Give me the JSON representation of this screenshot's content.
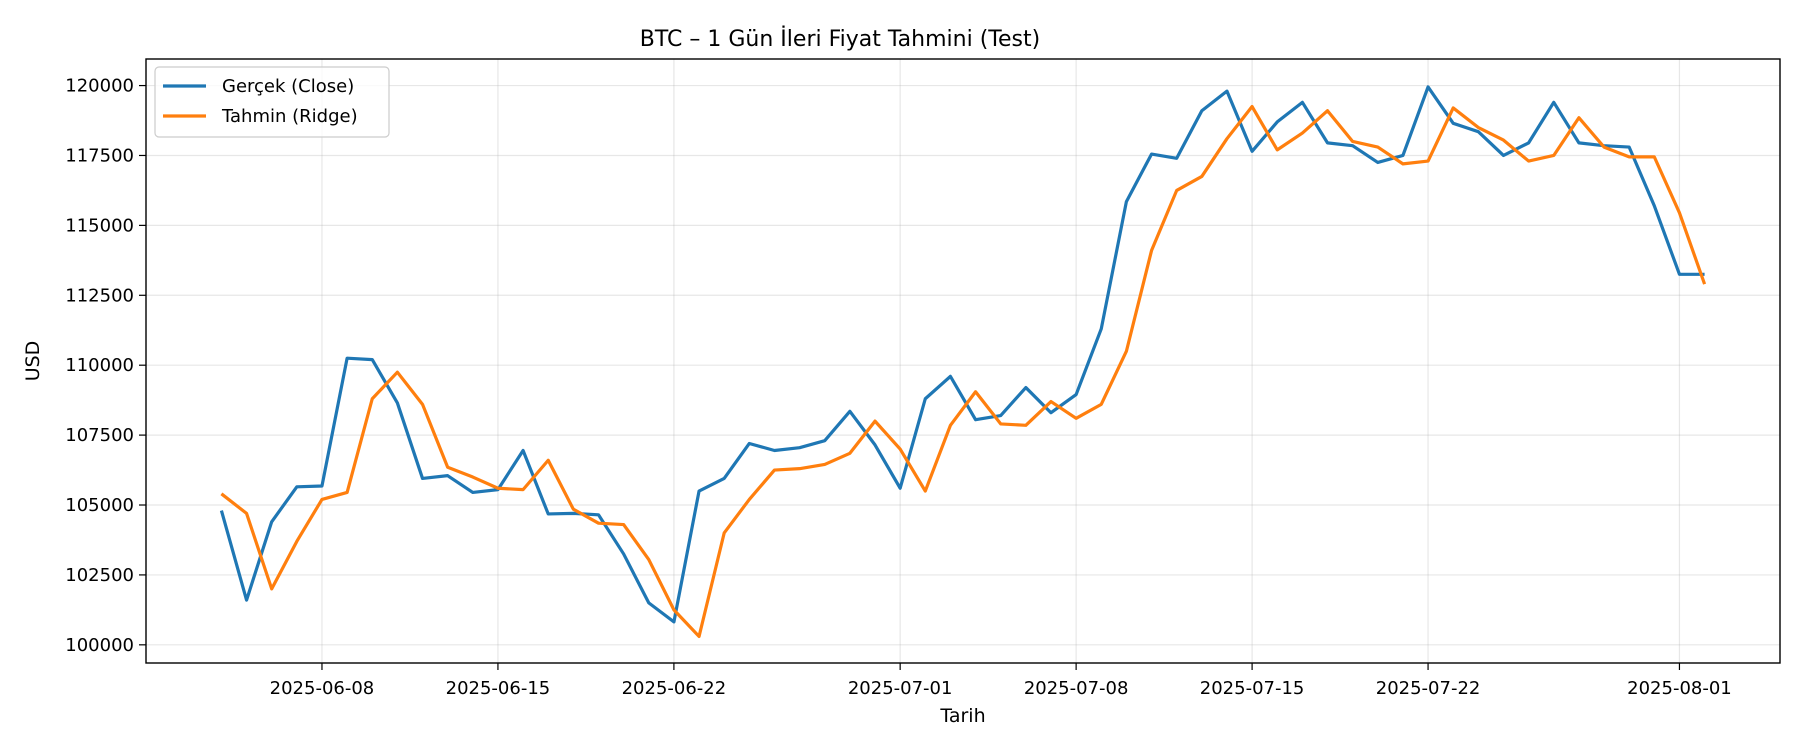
{
  "chart_data": {
    "type": "line",
    "title": "BTC – 1 Gün İleri Fiyat Tahmini (Test)",
    "xlabel": "Tarih",
    "ylabel": "USD",
    "x_start": "2025-06-04",
    "x": [
      "2025-06-04",
      "2025-06-05",
      "2025-06-06",
      "2025-06-07",
      "2025-06-08",
      "2025-06-09",
      "2025-06-10",
      "2025-06-11",
      "2025-06-12",
      "2025-06-13",
      "2025-06-14",
      "2025-06-15",
      "2025-06-16",
      "2025-06-17",
      "2025-06-18",
      "2025-06-19",
      "2025-06-20",
      "2025-06-21",
      "2025-06-22",
      "2025-06-23",
      "2025-06-24",
      "2025-06-25",
      "2025-06-26",
      "2025-06-27",
      "2025-06-28",
      "2025-06-29",
      "2025-06-30",
      "2025-07-01",
      "2025-07-02",
      "2025-07-03",
      "2025-07-04",
      "2025-07-05",
      "2025-07-06",
      "2025-07-07",
      "2025-07-08",
      "2025-07-09",
      "2025-07-10",
      "2025-07-11",
      "2025-07-12",
      "2025-07-13",
      "2025-07-14",
      "2025-07-15",
      "2025-07-16",
      "2025-07-17",
      "2025-07-18",
      "2025-07-19",
      "2025-07-20",
      "2025-07-21",
      "2025-07-22",
      "2025-07-23",
      "2025-07-24",
      "2025-07-25",
      "2025-07-26",
      "2025-07-27",
      "2025-07-28",
      "2025-07-29",
      "2025-07-30",
      "2025-07-31",
      "2025-08-01",
      "2025-08-02"
    ],
    "series": [
      {
        "name": "Gerçek (Close)",
        "color": "#1f77b4",
        "values": [
          104800,
          101600,
          104400,
          105650,
          105680,
          110250,
          110200,
          108650,
          105950,
          106050,
          105450,
          105550,
          106950,
          104680,
          104700,
          104650,
          103250,
          101500,
          100820,
          105500,
          105950,
          107200,
          106950,
          107050,
          107300,
          108350,
          107150,
          105600,
          108800,
          109600,
          108050,
          108200,
          109200,
          108300,
          108950,
          111300,
          115850,
          117550,
          117400,
          119100,
          119800,
          117650,
          118700,
          119400,
          117950,
          117850,
          117250,
          117500,
          119950,
          118650,
          118350,
          117500,
          117950,
          119400,
          117950,
          117850,
          117800,
          115700,
          113250,
          113250
        ]
      },
      {
        "name": "Tahmin (Ridge)",
        "color": "#ff7f0e",
        "values": [
          105400,
          104700,
          102000,
          103700,
          105200,
          105450,
          108800,
          109750,
          108600,
          106350,
          106000,
          105600,
          105550,
          106600,
          104850,
          104350,
          104300,
          103050,
          101250,
          100300,
          104000,
          105200,
          106250,
          106300,
          106450,
          106850,
          108000,
          107000,
          105500,
          107850,
          109050,
          107900,
          107850,
          108700,
          108100,
          108600,
          110500,
          114100,
          116250,
          116750,
          118100,
          119250,
          117700,
          118300,
          119100,
          118000,
          117800,
          117200,
          117300,
          119200,
          118500,
          118050,
          117300,
          117500,
          118850,
          117800,
          117450,
          117450,
          115450,
          112900
        ]
      }
    ],
    "x_ticks": [
      "2025-06-08",
      "2025-06-15",
      "2025-06-22",
      "2025-07-01",
      "2025-07-08",
      "2025-07-15",
      "2025-07-22",
      "2025-08-01"
    ],
    "y_ticks": [
      100000,
      102500,
      105000,
      107500,
      110000,
      112500,
      115000,
      117500,
      120000
    ],
    "y_tick_labels": [
      "100000",
      "102500",
      "105000",
      "107500",
      "110000",
      "112500",
      "115000",
      "117500",
      "120000"
    ],
    "xlim": [
      "2025-06-01",
      "2025-08-05"
    ],
    "ylim": [
      99350,
      120950
    ],
    "grid": true,
    "legend_position": "top-left"
  }
}
